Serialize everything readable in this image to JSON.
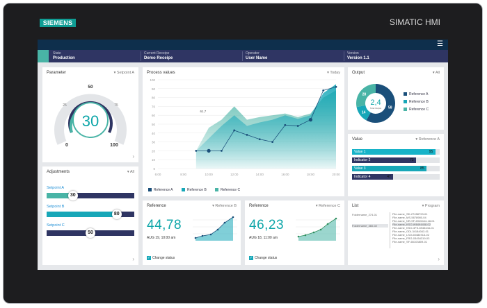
{
  "device": {
    "brand": "SIEMENS",
    "model": "SIMATIC HMI"
  },
  "colors": {
    "navy": "#2f3563",
    "teal": "#0ea6a9",
    "green": "#49b4a6",
    "cyan": "#17a7b8",
    "darkblue": "#1a4f7a"
  },
  "header": {
    "menu_icon": "hamburger-menu-icon"
  },
  "status": [
    {
      "label": "State",
      "value": "Production"
    },
    {
      "label": "Current Receipe",
      "value": "Demo Receipe"
    },
    {
      "label": "Operator",
      "value": "User Name"
    },
    {
      "label": "Version",
      "value": "Version 1.1"
    }
  ],
  "parameter": {
    "title": "Parameter",
    "filter": "Setpoint A",
    "value": "30",
    "scale": {
      "min": "0",
      "max": "100",
      "top": "50",
      "left": "25",
      "right": "75"
    }
  },
  "adjustments": {
    "title": "Adjustments",
    "filter": "All",
    "items": [
      {
        "label": "Setpoint A",
        "value": "30",
        "fraction": 0.3,
        "color": "#49b4a6"
      },
      {
        "label": "Setpoint B",
        "value": "80",
        "fraction": 0.8,
        "color": "#17a7b8"
      },
      {
        "label": "Setpoint C",
        "value": "50",
        "fraction": 0.5,
        "color": "#2f3563"
      }
    ]
  },
  "process": {
    "title": "Process values",
    "filter": "Today",
    "annotation": "61,7",
    "legend": [
      "Reference A",
      "Reference B",
      "Reference C"
    ]
  },
  "chart_data": {
    "type": "area",
    "title": "Process values",
    "categories": [
      "6:00",
      "8:00",
      "10:00",
      "12:00",
      "14:00",
      "16:00",
      "18:00",
      "20:00"
    ],
    "ylim": [
      0,
      100
    ],
    "yticks": [
      "0",
      "10",
      "20",
      "30",
      "40",
      "50",
      "60",
      "70",
      "80",
      "90",
      "100"
    ],
    "x": [
      6,
      7,
      8,
      9,
      10,
      11,
      12,
      13,
      14,
      15,
      16,
      17,
      18,
      19,
      20
    ],
    "series": [
      {
        "name": "Reference A",
        "color": "#1a4f7a",
        "values": [
          null,
          null,
          null,
          20,
          20,
          20,
          43,
          38,
          33,
          30,
          49,
          48,
          55,
          88,
          92
        ]
      },
      {
        "name": "Reference B",
        "color": "#17a7b8",
        "values": [
          null,
          null,
          null,
          20,
          34,
          48,
          60,
          48,
          52,
          55,
          60,
          56,
          60,
          85,
          95
        ]
      },
      {
        "name": "Reference C",
        "color": "#49b4a6",
        "values": [
          null,
          null,
          null,
          20,
          46,
          55,
          70,
          55,
          58,
          60,
          62,
          58,
          62,
          80,
          88
        ]
      }
    ],
    "grid": true
  },
  "output": {
    "title": "Output",
    "filter": "All",
    "center_value": "2,4",
    "center_label": "Total Output",
    "slices": [
      {
        "name": "Reference A",
        "value": 58,
        "color": "#1a4f7a"
      },
      {
        "name": "Reference B",
        "value": 14,
        "color": "#17a7b8"
      },
      {
        "name": "Reference C",
        "value": 28,
        "color": "#49b4a6"
      }
    ],
    "legend": [
      "Reference A",
      "Reference B",
      "Reference C"
    ]
  },
  "value_panel": {
    "title": "Value",
    "filter": "Reference A",
    "bars": [
      {
        "label": "Value 1",
        "value": "95",
        "fraction": 0.95,
        "color": "#17b3c8"
      },
      {
        "label": "Indicator 2",
        "value": "73",
        "fraction": 0.73,
        "color": "#2f3563"
      },
      {
        "label": "Value 3",
        "value": "85",
        "fraction": 0.85,
        "color": "#17a7b8"
      },
      {
        "label": "Indicator 4",
        "value": "47",
        "fraction": 0.47,
        "color": "#2f3563"
      }
    ]
  },
  "reference_b": {
    "title": "Reference",
    "filter": "Reference B",
    "value": "44,78",
    "date": "AUG 19, 10:00 am",
    "checkbox": "Change status"
  },
  "reference_c": {
    "title": "Reference",
    "filter": "Reference C",
    "value": "46,23",
    "date": "AUG 18, 11:00 am",
    "checkbox": "Change status"
  },
  "list": {
    "title": "List",
    "filter": "Program",
    "folders": [
      "Foldername_274-01",
      "Foldername_460-02"
    ],
    "files": [
      "File-name_SD-27458793-01",
      "File-name_MS-5678980-04",
      "File-name_NR-SF-6945444-18-01",
      "File-name_KSO-W8494458-02",
      "File-name_KSO-4FS-6945444-01",
      "File-name_ODI-34184043-01",
      "File-name_LSO-60484913-02",
      "File-name_FRG-03454319-03",
      "File-name_SF-65103809-01"
    ]
  }
}
